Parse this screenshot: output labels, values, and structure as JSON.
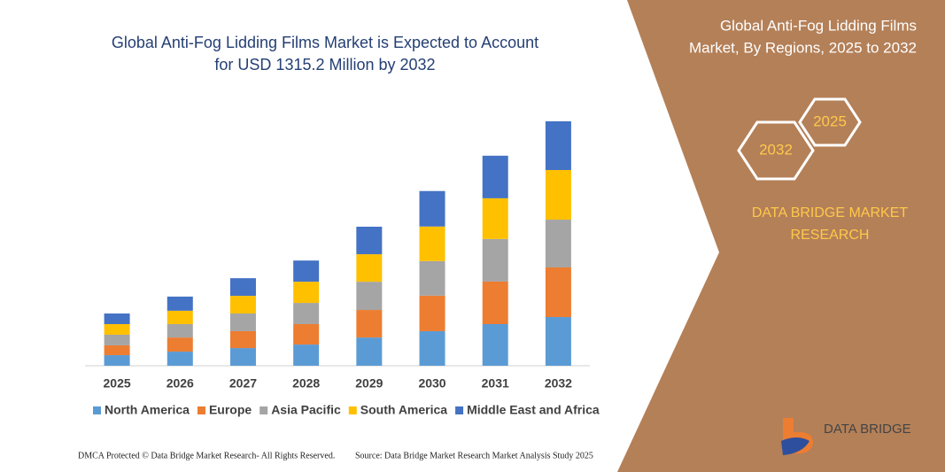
{
  "chart_data": {
    "type": "stacked-bar",
    "title": "Global Anti-Fog Lidding Films Market is Expected to Account for USD 1315.2 Million by 2032",
    "categories": [
      "2025",
      "2026",
      "2027",
      "2028",
      "2029",
      "2030",
      "2031",
      "2032"
    ],
    "series": [
      {
        "name": "North America",
        "color": "#5b9bd5",
        "values": [
          57,
          76,
          95,
          114,
          152,
          186,
          224,
          262
        ]
      },
      {
        "name": "Europe",
        "color": "#ed7d31",
        "values": [
          53,
          76,
          91,
          110,
          148,
          191,
          229,
          267
        ]
      },
      {
        "name": "Asia Pacific",
        "color": "#a5a5a5",
        "values": [
          57,
          72,
          95,
          114,
          152,
          186,
          229,
          257
        ]
      },
      {
        "name": "South America",
        "color": "#ffc000",
        "values": [
          57,
          72,
          95,
          114,
          148,
          186,
          219,
          267
        ]
      },
      {
        "name": "Middle East and Africa",
        "color": "#4472c4",
        "values": [
          57,
          76,
          95,
          114,
          148,
          191,
          229,
          262
        ]
      }
    ],
    "legend": "bottom"
  },
  "panel": {
    "title": [
      "Global Anti-Fog Lidding Films",
      "Market, By Regions, 2025 to 2032"
    ],
    "hexagons": [
      "2025",
      "2032"
    ],
    "brand": [
      "DATA BRIDGE MARKET",
      "RESEARCH"
    ],
    "logo": "DATA BRIDGE"
  },
  "footer": {
    "left": "DMCA Protected © Data Bridge Market Research- All Rights Reserved.",
    "right": "Source: Data Bridge Market Research  Market Analysis Study 2025"
  }
}
